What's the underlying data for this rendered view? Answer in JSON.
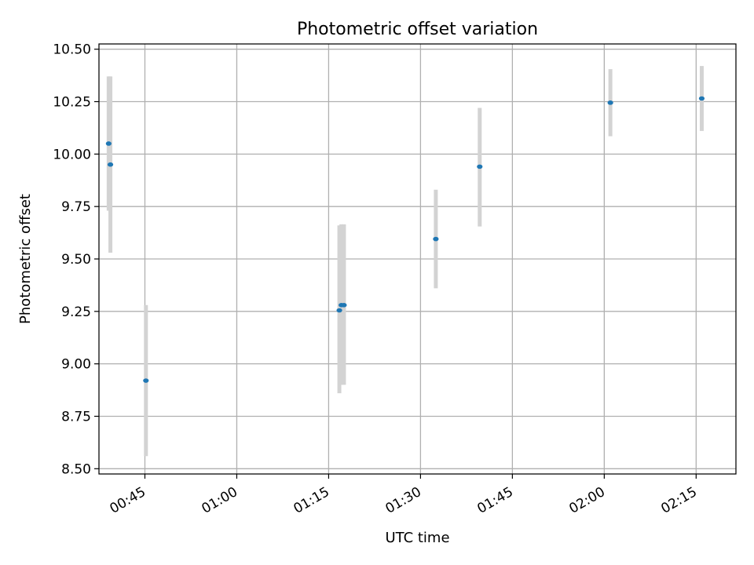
{
  "chart_data": {
    "type": "scatter",
    "title": "Photometric offset variation",
    "xlabel": "UTC time",
    "ylabel": "Photometric offset",
    "x_axis_type": "time",
    "xlim": [
      "00:37:30",
      "02:21:30"
    ],
    "ylim": [
      8.475,
      10.525
    ],
    "x_ticks": [
      "00:45",
      "01:00",
      "01:15",
      "01:30",
      "01:45",
      "02:00",
      "02:15"
    ],
    "y_ticks": [
      8.5,
      8.75,
      9.0,
      9.25,
      9.5,
      9.75,
      10.0,
      10.25,
      10.5
    ],
    "y_tick_labels": [
      "8.50",
      "8.75",
      "9.00",
      "9.25",
      "9.50",
      "9.75",
      "10.00",
      "10.25",
      "10.50"
    ],
    "grid": true,
    "legend": false,
    "marker_color": "#1f77b4",
    "errorbar_color": "#d3d3d3",
    "points": [
      {
        "x": "00:39:05",
        "y": 10.05,
        "yerr_low": 9.73,
        "yerr_high": 10.37
      },
      {
        "x": "00:39:22",
        "y": 9.95,
        "yerr_low": 9.53,
        "yerr_high": 10.37
      },
      {
        "x": "00:45:10",
        "y": 8.92,
        "yerr_low": 8.56,
        "yerr_high": 9.28
      },
      {
        "x": "01:16:45",
        "y": 9.255,
        "yerr_low": 8.86,
        "yerr_high": 9.66
      },
      {
        "x": "01:17:05",
        "y": 9.28,
        "yerr_low": 8.9,
        "yerr_high": 9.665
      },
      {
        "x": "01:17:30",
        "y": 9.28,
        "yerr_low": 8.9,
        "yerr_high": 9.665
      },
      {
        "x": "01:32:30",
        "y": 9.595,
        "yerr_low": 9.36,
        "yerr_high": 9.83
      },
      {
        "x": "01:39:40",
        "y": 9.94,
        "yerr_low": 9.655,
        "yerr_high": 10.22
      },
      {
        "x": "02:01:00",
        "y": 10.245,
        "yerr_low": 10.085,
        "yerr_high": 10.405
      },
      {
        "x": "02:15:55",
        "y": 10.265,
        "yerr_low": 10.11,
        "yerr_high": 10.42
      }
    ]
  }
}
